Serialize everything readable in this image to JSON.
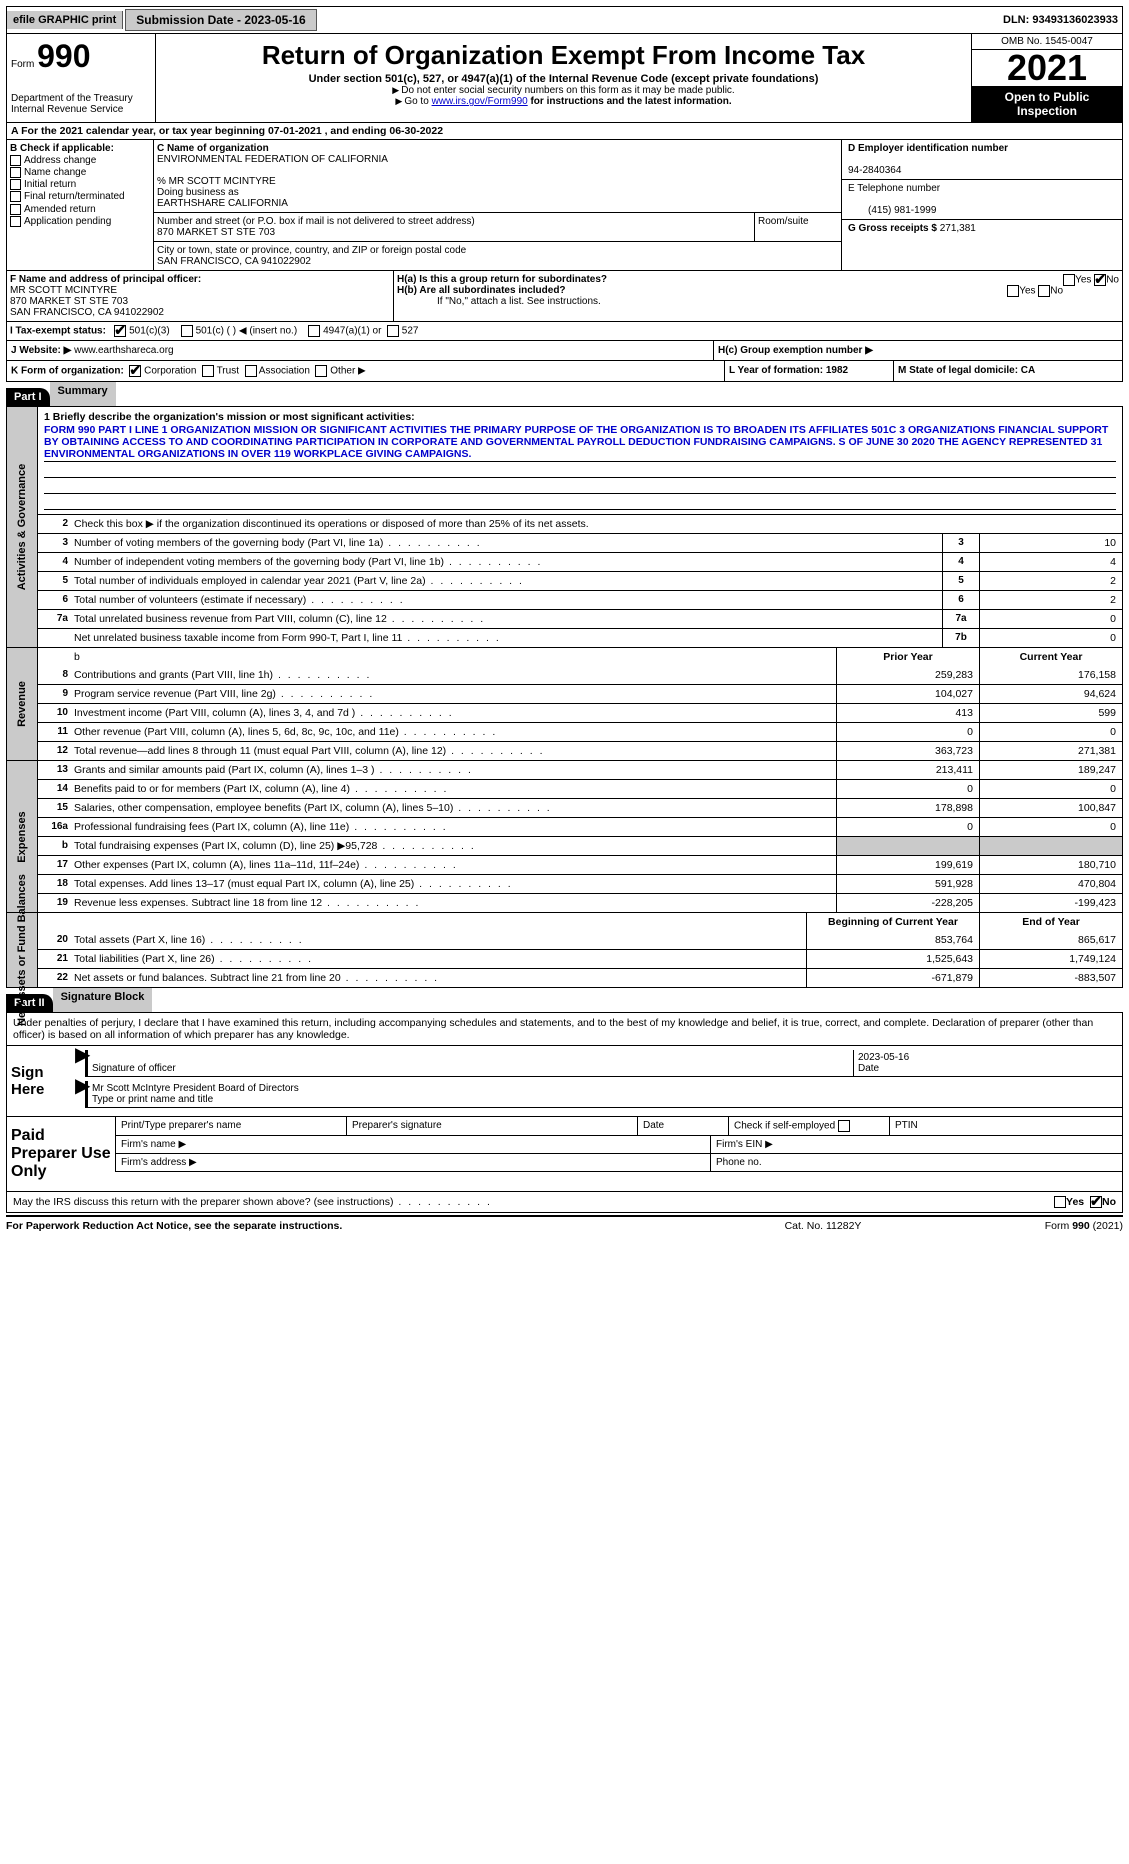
{
  "topbar": {
    "efile": "efile GRAPHIC print",
    "sub_label": "Submission Date - 2023-05-16",
    "dln": "DLN: 93493136023933"
  },
  "header": {
    "form_word": "Form",
    "form_num": "990",
    "dept": "Department of the Treasury\nInternal Revenue Service",
    "title": "Return of Organization Exempt From Income Tax",
    "subtitle": "Under section 501(c), 527, or 4947(a)(1) of the Internal Revenue Code (except private foundations)",
    "note1": "Do not enter social security numbers on this form as it may be made public.",
    "note2": "Go to ",
    "note2_link": "www.irs.gov/Form990",
    "note2_after": " for instructions and the latest information.",
    "omb": "OMB No. 1545-0047",
    "year": "2021",
    "open": "Open to Public Inspection"
  },
  "rowA": "For the 2021 calendar year, or tax year beginning 07-01-2021    , and ending 06-30-2022",
  "boxB": {
    "hdr": "B Check if applicable:",
    "items": [
      "Address change",
      "Name change",
      "Initial return",
      "Final return/terminated",
      "Amended return",
      "Application pending"
    ]
  },
  "boxC": {
    "label_name": "C Name of organization",
    "org": "ENVIRONMENTAL FEDERATION OF CALIFORNIA",
    "care": "% MR SCOTT MCINTYRE",
    "dba_lbl": "Doing business as",
    "dba": "EARTHSHARE CALIFORNIA",
    "addr_lbl": "Number and street (or P.O. box if mail is not delivered to street address)",
    "addr": "870 MARKET ST STE 703",
    "room_lbl": "Room/suite",
    "city_lbl": "City or town, state or province, country, and ZIP or foreign postal code",
    "city": "SAN FRANCISCO, CA  941022902"
  },
  "boxD": {
    "ein_lbl": "D Employer identification number",
    "ein": "94-2840364",
    "tel_lbl": "E Telephone number",
    "tel": "(415) 981-1999",
    "gross_lbl": "G Gross receipts $",
    "gross": "271,381"
  },
  "boxF": {
    "lbl": "F Name and address of principal officer:",
    "name": "MR SCOTT MCINTYRE",
    "addr1": "870 MARKET ST STE 703",
    "addr2": "SAN FRANCISCO, CA  941022902"
  },
  "boxH": {
    "ha": "H(a)  Is this a group return for subordinates?",
    "hb": "H(b)  Are all subordinates included?",
    "hb_note": "If \"No,\" attach a list. See instructions.",
    "hc": "H(c)  Group exemption number ▶"
  },
  "rowI": {
    "lbl": "I   Tax-exempt status:",
    "o1": "501(c)(3)",
    "o2": "501(c) (  ) ◀ (insert no.)",
    "o3": "4947(a)(1) or",
    "o4": "527"
  },
  "rowJ": {
    "lbl": "J   Website: ▶",
    "val": "www.earthshareca.org"
  },
  "rowK": {
    "lbl": "K Form of organization:",
    "o1": "Corporation",
    "o2": "Trust",
    "o3": "Association",
    "o4": "Other ▶",
    "l": "L Year of formation: 1982",
    "m": "M State of legal domicile: CA"
  },
  "part1": {
    "hdr": "Part I",
    "title": "Summary"
  },
  "mission": {
    "lbl": "1   Briefly describe the organization's mission or most significant activities:",
    "txt": "FORM 990 PART I LINE 1 ORGANIZATION MISSION OR SIGNIFICANT ACTIVITIES THE PRIMARY PURPOSE OF THE ORGANIZATION IS TO BROADEN ITS AFFILIATES 501C 3 ORGANIZATIONS FINANCIAL SUPPORT BY OBTAINING ACCESS TO AND COORDINATING PARTICIPATION IN CORPORATE AND GOVERNMENTAL PAYROLL DEDUCTION FUNDRAISING CAMPAIGNS. S OF JUNE 30 2020 THE AGENCY REPRESENTED 31 ENVIRONMENTAL ORGANIZATIONS IN OVER 119 WORKPLACE GIVING CAMPAIGNS."
  },
  "gov": {
    "side": "Activities & Governance",
    "l2": "Check this box ▶        if the organization discontinued its operations or disposed of more than 25% of its net assets.",
    "l3": {
      "t": "Number of voting members of the governing body (Part VI, line 1a)",
      "n": "3",
      "v": "10"
    },
    "l4": {
      "t": "Number of independent voting members of the governing body (Part VI, line 1b)",
      "n": "4",
      "v": "4"
    },
    "l5": {
      "t": "Total number of individuals employed in calendar year 2021 (Part V, line 2a)",
      "n": "5",
      "v": "2"
    },
    "l6": {
      "t": "Total number of volunteers (estimate if necessary)",
      "n": "6",
      "v": "2"
    },
    "l7a": {
      "t": "Total unrelated business revenue from Part VIII, column (C), line 12",
      "n": "7a",
      "v": "0"
    },
    "l7b": {
      "t": "Net unrelated business taxable income from Form 990-T, Part I, line 11",
      "n": "7b",
      "v": "0"
    }
  },
  "rev": {
    "side": "Revenue",
    "hdr_prior": "Prior Year",
    "hdr_cur": "Current Year",
    "rows": [
      {
        "n": "8",
        "t": "Contributions and grants (Part VIII, line 1h)",
        "p": "259,283",
        "c": "176,158"
      },
      {
        "n": "9",
        "t": "Program service revenue (Part VIII, line 2g)",
        "p": "104,027",
        "c": "94,624"
      },
      {
        "n": "10",
        "t": "Investment income (Part VIII, column (A), lines 3, 4, and 7d )",
        "p": "413",
        "c": "599"
      },
      {
        "n": "11",
        "t": "Other revenue (Part VIII, column (A), lines 5, 6d, 8c, 9c, 10c, and 11e)",
        "p": "0",
        "c": "0"
      },
      {
        "n": "12",
        "t": "Total revenue—add lines 8 through 11 (must equal Part VIII, column (A), line 12)",
        "p": "363,723",
        "c": "271,381"
      }
    ]
  },
  "exp": {
    "side": "Expenses",
    "rows": [
      {
        "n": "13",
        "t": "Grants and similar amounts paid (Part IX, column (A), lines 1–3 )",
        "p": "213,411",
        "c": "189,247"
      },
      {
        "n": "14",
        "t": "Benefits paid to or for members (Part IX, column (A), line 4)",
        "p": "0",
        "c": "0"
      },
      {
        "n": "15",
        "t": "Salaries, other compensation, employee benefits (Part IX, column (A), lines 5–10)",
        "p": "178,898",
        "c": "100,847"
      },
      {
        "n": "16a",
        "t": "Professional fundraising fees (Part IX, column (A), line 11e)",
        "p": "0",
        "c": "0"
      },
      {
        "n": "b",
        "t": "Total fundraising expenses (Part IX, column (D), line 25) ▶95,728",
        "p": "",
        "c": "",
        "grey": true
      },
      {
        "n": "17",
        "t": "Other expenses (Part IX, column (A), lines 11a–11d, 11f–24e)",
        "p": "199,619",
        "c": "180,710"
      },
      {
        "n": "18",
        "t": "Total expenses. Add lines 13–17 (must equal Part IX, column (A), line 25)",
        "p": "591,928",
        "c": "470,804"
      },
      {
        "n": "19",
        "t": "Revenue less expenses. Subtract line 18 from line 12",
        "p": "-228,205",
        "c": "-199,423"
      }
    ]
  },
  "net": {
    "side": "Net Assets or Fund Balances",
    "hdr_beg": "Beginning of Current Year",
    "hdr_end": "End of Year",
    "rows": [
      {
        "n": "20",
        "t": "Total assets (Part X, line 16)",
        "p": "853,764",
        "c": "865,617"
      },
      {
        "n": "21",
        "t": "Total liabilities (Part X, line 26)",
        "p": "1,525,643",
        "c": "1,749,124"
      },
      {
        "n": "22",
        "t": "Net assets or fund balances. Subtract line 21 from line 20",
        "p": "-671,879",
        "c": "-883,507"
      }
    ]
  },
  "part2": {
    "hdr": "Part II",
    "title": "Signature Block"
  },
  "sig": {
    "decl": "Under penalties of perjury, I declare that I have examined this return, including accompanying schedules and statements, and to the best of my knowledge and belief, it is true, correct, and complete. Declaration of preparer (other than officer) is based on all information of which preparer has any knowledge.",
    "sign_here": "Sign Here",
    "sig_officer": "Signature of officer",
    "date": "2023-05-16",
    "date_lbl": "Date",
    "name": "Mr Scott McIntyre  President Board of Directors",
    "name_lbl": "Type or print name and title"
  },
  "prep": {
    "lbl": "Paid Preparer Use Only",
    "h1": "Print/Type preparer's name",
    "h2": "Preparer's signature",
    "h3": "Date",
    "h4": "Check          if self-employed",
    "h5": "PTIN",
    "firm": "Firm's name    ▶",
    "ein": "Firm's EIN ▶",
    "addr": "Firm's address ▶",
    "phone": "Phone no."
  },
  "discuss": "May the IRS discuss this return with the preparer shown above? (see instructions)",
  "footer": {
    "l": "For Paperwork Reduction Act Notice, see the separate instructions.",
    "m": "Cat. No. 11282Y",
    "r": "Form 990 (2021)"
  },
  "labels": {
    "yes": "Yes",
    "no": "No"
  }
}
